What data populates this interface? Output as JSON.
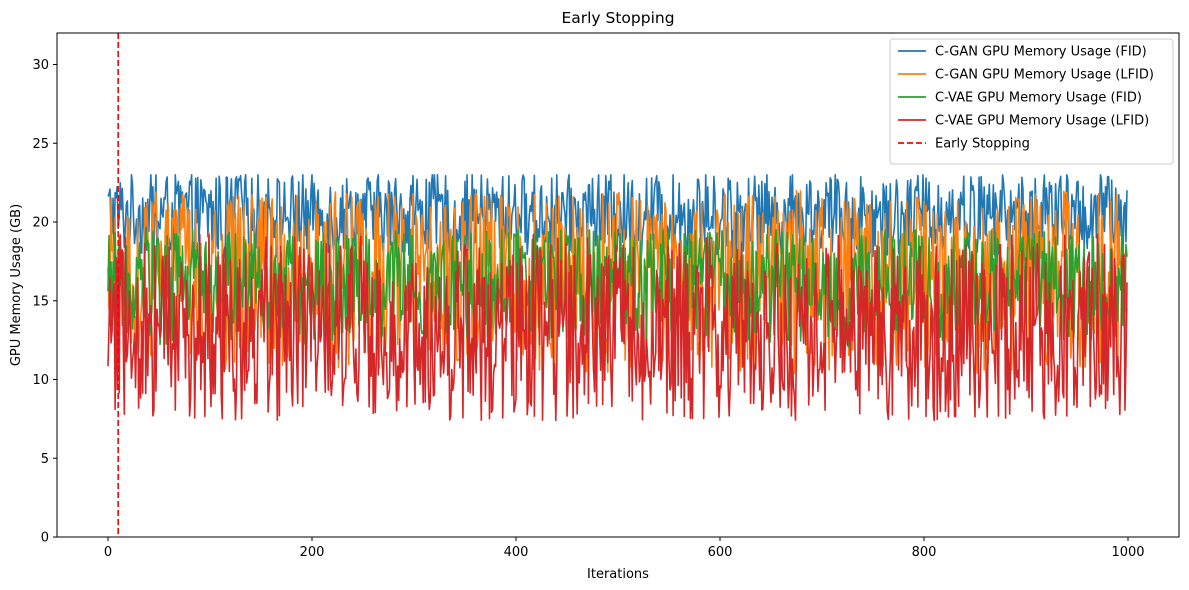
{
  "chart_data": {
    "type": "line",
    "title": "Early Stopping",
    "xlabel": "Iterations",
    "ylabel": "GPU Memory Usage (GB)",
    "xlim": [
      -50,
      1050
    ],
    "ylim": [
      0,
      32
    ],
    "xticks": [
      0,
      200,
      400,
      600,
      800,
      1000
    ],
    "yticks": [
      0,
      5,
      10,
      15,
      20,
      25,
      30
    ],
    "grid": false,
    "legend_position": "top-right",
    "n_points": 1000,
    "series": [
      {
        "name": "C-GAN GPU Memory Usage (FID)",
        "color": "#1f77b4",
        "style": "solid",
        "min": 17.5,
        "max": 23.0,
        "mean": 20.5
      },
      {
        "name": "C-GAN GPU Memory Usage (LFID)",
        "color": "#ff7f0e",
        "style": "solid",
        "min": 10.2,
        "max": 22.0,
        "mean": 16.2
      },
      {
        "name": "C-VAE GPU Memory Usage (FID)",
        "color": "#2ca02c",
        "style": "solid",
        "min": 12.0,
        "max": 19.5,
        "mean": 16.0
      },
      {
        "name": "C-VAE GPU Memory Usage (LFID)",
        "color": "#d62728",
        "style": "solid",
        "min": 7.4,
        "max": 19.3,
        "mean": 13.0
      }
    ],
    "vlines": [
      {
        "name": "Early Stopping",
        "x": 10,
        "color": "#ff0000",
        "style": "dashed"
      }
    ]
  }
}
